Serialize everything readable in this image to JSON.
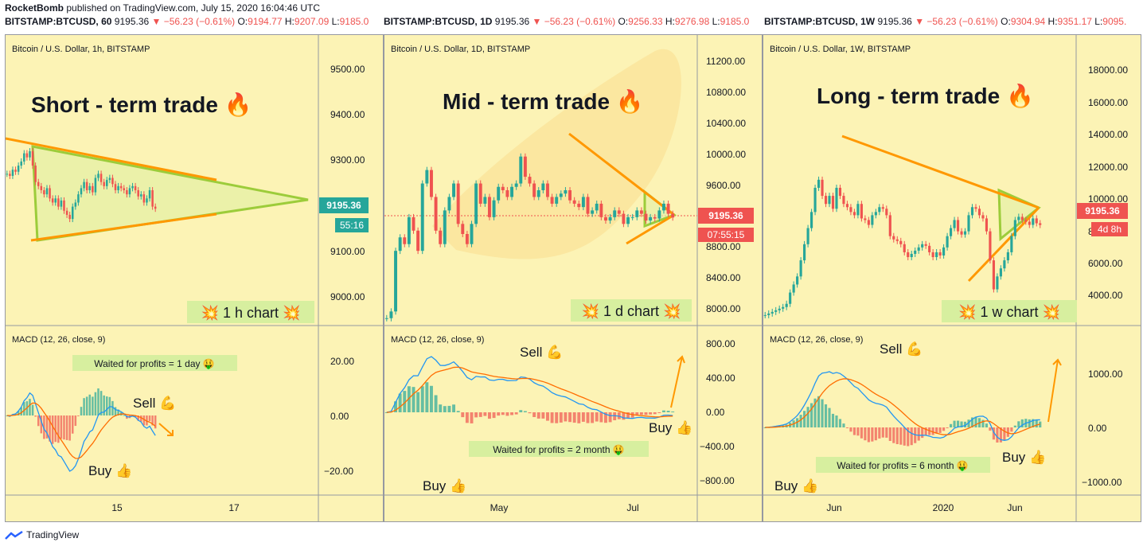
{
  "header": {
    "author": "RocketBomb",
    "published": "published on TradingView.com, July 15, 2020 16:04:46 UTC"
  },
  "footer": {
    "brand": "TradingView"
  },
  "colors": {
    "background": "#fcf3b5",
    "up": "#26a69a",
    "down": "#ef5350",
    "trend": "#ff9800",
    "triangle": "#9ccc3a",
    "macd": "#2196f3",
    "signal": "#ff6d00"
  },
  "panels": [
    {
      "ticker": {
        "symbol": "BITSTAMP:BTCUSD, 60",
        "price": "9195.36",
        "change": "▼ −56.23 (−0.61%)",
        "o": "9194.77",
        "h": "9207.09",
        "l": "9185.0"
      },
      "legend": "Bitcoin / U.S. Dollar, 1h, BITSTAMP",
      "title": "Short - term trade 🔥",
      "chart_label": "💥 1 h chart 💥",
      "price_axis": [
        "9500.00",
        "9400.00",
        "9300.00",
        "9200.00",
        "9100.00",
        "9000.00"
      ],
      "price_badge": "9195.36",
      "countdown": "55:16",
      "macd_legend": "MACD (12, 26, close, 9)",
      "macd_axis": [
        "20.00",
        "0.00",
        "−20.00"
      ],
      "note": "Waited for profits = 1 day 🤑",
      "sell": "Sell 💪",
      "buy": "Buy 👍",
      "x_axis": [
        "15",
        "17"
      ]
    },
    {
      "ticker": {
        "symbol": "BITSTAMP:BTCUSD, 1D",
        "price": "9195.36",
        "change": "▼ −56.23 (−0.61%)",
        "o": "9256.33",
        "h": "9276.98",
        "l": "9185.0"
      },
      "legend": "Bitcoin / U.S. Dollar, 1D, BITSTAMP",
      "title": "Mid - term trade 🔥",
      "chart_label": "💥 1 d chart 💥",
      "price_axis": [
        "11200.00",
        "10800.00",
        "10400.00",
        "10000.00",
        "9600.00",
        "8800.00",
        "8400.00",
        "8000.00"
      ],
      "price_badge": "9195.36",
      "countdown": "07:55:15",
      "macd_legend": "MACD (12, 26, close, 9)",
      "macd_axis": [
        "800.00",
        "400.00",
        "0.00",
        "−400.00",
        "−800.00"
      ],
      "note": "Waited for profits = 2 month 🤑",
      "sell": "Sell 💪",
      "buy1": "Buy 👍",
      "buy2": "Buy 👍",
      "x_axis": [
        "May",
        "Jul"
      ]
    },
    {
      "ticker": {
        "symbol": "BITSTAMP:BTCUSD, 1W",
        "price": "9195.36",
        "change": "▼ −56.23 (−0.61%)",
        "o": "9304.94",
        "h": "9351.17",
        "l": "9095."
      },
      "legend": "Bitcoin / U.S. Dollar, 1W, BITSTAMP",
      "title": "Long - term trade 🔥",
      "chart_label": "💥 1 w chart 💥",
      "price_axis": [
        "18000.00",
        "16000.00",
        "14000.00",
        "12000.00",
        "10000.00",
        "80",
        "6000.00",
        "4000.00"
      ],
      "price_badge": "9195.36",
      "countdown": "4d 8h",
      "macd_legend": "MACD (12, 26, close, 9)",
      "macd_axis": [
        "1000.00",
        "0.00",
        "−1000.00"
      ],
      "note": "Waited for profits = 6 month 🤑",
      "sell": "Sell 💪",
      "buy1": "Buy 👍",
      "buy2": "Buy 👍",
      "x_axis": [
        "Jun",
        "2020",
        "Jun"
      ]
    }
  ],
  "chart_data": [
    {
      "type": "candlestick",
      "title": "Short - term trade 🔥",
      "interval": "1h",
      "ylim": [
        8920,
        9560
      ],
      "last": 9195.36,
      "closes": [
        9280,
        9275,
        9290,
        9285,
        9300,
        9310,
        9330,
        9320,
        9335,
        9300,
        9260,
        9250,
        9240,
        9230,
        9245,
        9220,
        9210,
        9220,
        9200,
        9215,
        9190,
        9180,
        9170,
        9200,
        9210,
        9230,
        9245,
        9260,
        9240,
        9250,
        9235,
        9270,
        9280,
        9260,
        9250,
        9265,
        9270,
        9255,
        9240,
        9250,
        9245,
        9240,
        9230,
        9245,
        9250,
        9240,
        9225,
        9230,
        9210,
        9220,
        9240,
        9200,
        9195
      ],
      "x_ticks": [
        "15",
        "17"
      ]
    },
    {
      "type": "candlestick",
      "title": "Mid - term trade 🔥",
      "interval": "1D",
      "ylim": [
        7650,
        11550
      ],
      "last": 9195.36,
      "closes": [
        7700,
        7800,
        8700,
        8900,
        8800,
        9200,
        9000,
        8700,
        9700,
        9900,
        9500,
        9000,
        8800,
        9300,
        9500,
        9700,
        9100,
        8950,
        8800,
        9100,
        9700,
        9400,
        9500,
        9200,
        9450,
        9650,
        9600,
        9500,
        9650,
        9700,
        10100,
        9800,
        9700,
        9500,
        9600,
        9700,
        9500,
        9400,
        9500,
        9550,
        9600,
        9450,
        9400,
        9350,
        9500,
        9250,
        9300,
        9400,
        9200,
        9150,
        9200,
        9300,
        9250,
        9100,
        9200,
        9200,
        9300,
        9250,
        9150,
        9200,
        9180,
        9300,
        9400,
        9250,
        9195
      ],
      "x_ticks": [
        "May",
        "Jul"
      ]
    },
    {
      "type": "candlestick",
      "title": "Long - term trade 🔥",
      "interval": "1W",
      "ylim": [
        3200,
        19500
      ],
      "last": 9195.36,
      "closes": [
        3600,
        3700,
        3800,
        3900,
        4000,
        4100,
        4300,
        5000,
        5500,
        6000,
        7000,
        8000,
        9000,
        10000,
        11500,
        12000,
        11000,
        10500,
        11000,
        10200,
        11500,
        11000,
        10500,
        10300,
        10000,
        9800,
        10500,
        9600,
        9500,
        9200,
        9800,
        10000,
        10300,
        10200,
        9800,
        8500,
        8300,
        8200,
        8000,
        7500,
        7200,
        7400,
        7600,
        7800,
        8000,
        7900,
        7500,
        7200,
        7500,
        7300,
        7800,
        8500,
        9000,
        9500,
        8800,
        8600,
        8800,
        9800,
        10300,
        10200,
        9800,
        9600,
        8800,
        7000,
        5200,
        6000,
        6500,
        7000,
        7500,
        8500,
        9500,
        9700,
        9500,
        9400,
        9200,
        9600,
        9300,
        9195
      ],
      "x_ticks": [
        "Jun",
        "2020",
        "Jun"
      ]
    }
  ]
}
